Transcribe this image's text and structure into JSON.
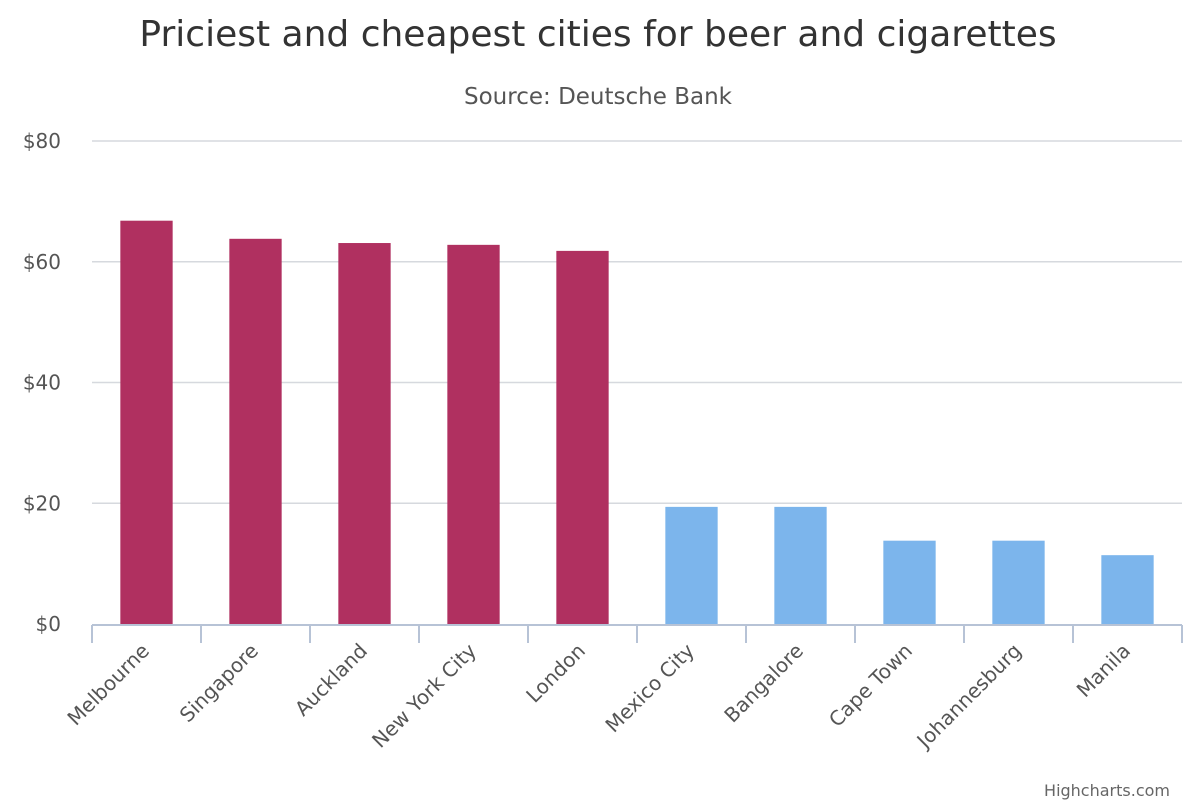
{
  "chart_data": {
    "type": "bar",
    "title": "Priciest and cheapest cities for beer and cigarettes",
    "subtitle": "Source: Deutsche Bank",
    "xlabel": "",
    "ylabel": "",
    "categories": [
      "Melbourne",
      "Singapore",
      "Auckland",
      "New York City",
      "London",
      "Mexico City",
      "Bangalore",
      "Cape Town",
      "Johannesburg",
      "Manila"
    ],
    "values": [
      66.8,
      63.8,
      63.1,
      62.8,
      61.8,
      19.4,
      19.4,
      13.8,
      13.8,
      11.4
    ],
    "bar_colors": [
      "#b03060",
      "#b03060",
      "#b03060",
      "#b03060",
      "#b03060",
      "#7cb5ec",
      "#7cb5ec",
      "#7cb5ec",
      "#7cb5ec",
      "#7cb5ec"
    ],
    "ylim": [
      0,
      80
    ],
    "yticks": [
      0,
      20,
      40,
      60,
      80
    ],
    "ytick_labels": [
      "$0",
      "$20",
      "$40",
      "$60",
      "$80"
    ],
    "grid": true,
    "legend": "none"
  },
  "credits": "Highcharts.com"
}
